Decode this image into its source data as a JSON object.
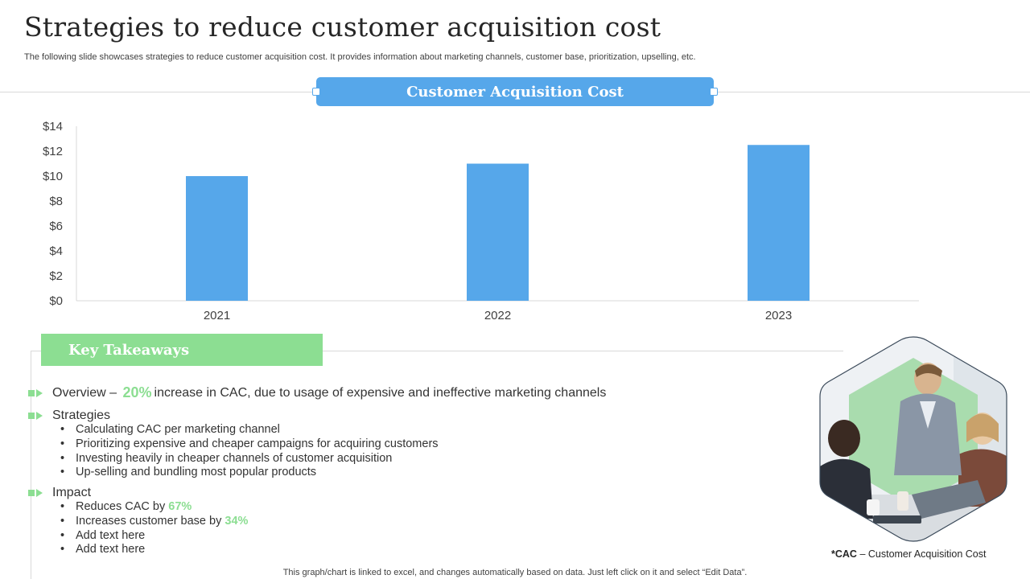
{
  "header": {
    "title": "Strategies to reduce customer acquisition cost",
    "subtitle": "The following slide showcases strategies to reduce customer acquisition cost. It provides information about marketing channels, customer base, prioritization, upselling, etc."
  },
  "chart_banner": "Customer Acquisition Cost",
  "chart_data": {
    "type": "bar",
    "categories": [
      "2021",
      "2022",
      "2023"
    ],
    "values": [
      10,
      11,
      12.5
    ],
    "title": "Customer Acquisition Cost",
    "xlabel": "",
    "ylabel": "",
    "ylim": [
      0,
      14
    ],
    "yticks": [
      "$0",
      "$2",
      "$4",
      "$6",
      "$8",
      "$10",
      "$12",
      "$14"
    ],
    "grid": false,
    "color": "#56a7ea"
  },
  "takeaways": {
    "title": "Key Takeaways",
    "overview": {
      "label": "Overview",
      "dash": "–",
      "highlight": "20%",
      "text": "increase in CAC, due to usage of expensive and ineffective marketing channels"
    },
    "strategies": {
      "label": "Strategies",
      "items": [
        "Calculating CAC per marketing channel",
        "Prioritizing expensive and cheaper campaigns for acquiring customers",
        "Investing heavily in cheaper channels of customer acquisition",
        "Up-selling and bundling most popular products"
      ]
    },
    "impact": {
      "label": "Impact",
      "item1_text": "Reduces CAC by",
      "item1_highlight": "67%",
      "item2_text": "Increases customer base by",
      "item2_highlight": "34%",
      "item3": "Add text here",
      "item4": "Add text here"
    }
  },
  "note": {
    "abbr": "*CAC",
    "text": "– Customer Acquisition Cost"
  },
  "footer": "This graph/chart is linked to excel, and changes automatically based on data. Just left click on it and select “Edit Data”.",
  "colors": {
    "accent_blue": "#56a7ea",
    "accent_green": "#8cde92"
  }
}
